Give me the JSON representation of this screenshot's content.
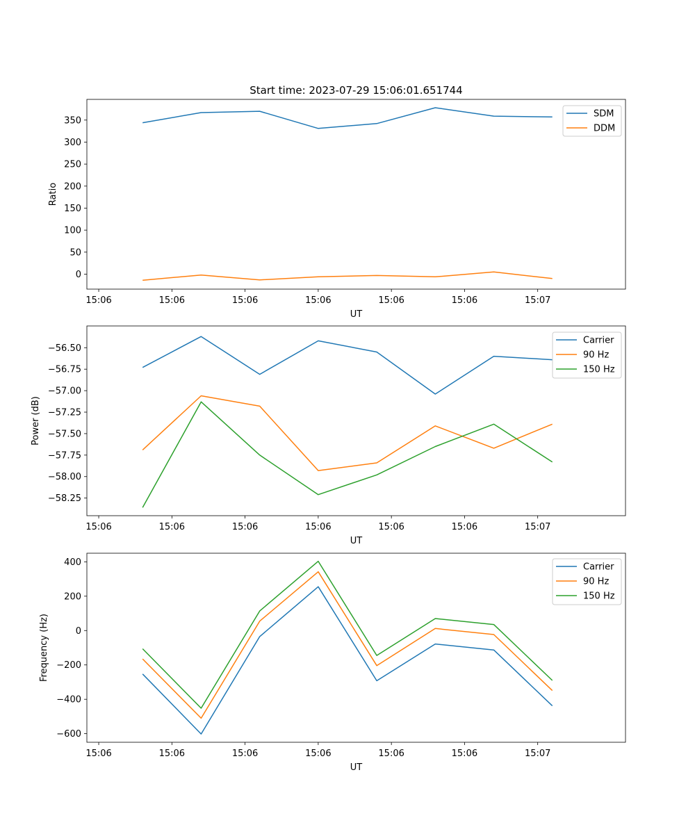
{
  "chart_data": [
    {
      "type": "line",
      "title": "Start time: 2023-07-29 15:06:01.651744",
      "xlabel": "UT",
      "ylabel": "Ratio",
      "xticks": [
        "15:06",
        "15:06",
        "15:06",
        "15:06",
        "15:06",
        "15:06",
        "15:07"
      ],
      "xlim": [
        -0.127,
        1.1
      ],
      "ylim": [
        -34,
        397
      ],
      "yticks": [
        "0",
        "50",
        "100",
        "150",
        "200",
        "250",
        "300",
        "350"
      ],
      "x": [
        0,
        0.1333,
        0.2667,
        0.4,
        0.5333,
        0.6667,
        0.8,
        0.9333
      ],
      "series": [
        {
          "name": "SDM",
          "color": "#1f77b4",
          "values": [
            344,
            367,
            370,
            331,
            342,
            378,
            359,
            357
          ]
        },
        {
          "name": "DDM",
          "color": "#ff7f0e",
          "values": [
            -14,
            -2,
            -13,
            -6,
            -3,
            -6,
            5,
            -10
          ]
        }
      ],
      "legend": "top-right"
    },
    {
      "type": "line",
      "title": "",
      "xlabel": "UT",
      "ylabel": "Power (dB)",
      "xticks": [
        "15:06",
        "15:06",
        "15:06",
        "15:06",
        "15:06",
        "15:06",
        "15:07"
      ],
      "xlim": [
        -0.127,
        1.1
      ],
      "ylim": [
        -58.455,
        -56.247
      ],
      "yticks": [
        "−58.25",
        "−58.00",
        "−57.75",
        "−57.50",
        "−57.25",
        "−57.00",
        "−56.75",
        "−56.50"
      ],
      "x": [
        0,
        0.1333,
        0.2667,
        0.4,
        0.5333,
        0.6667,
        0.8,
        0.9333
      ],
      "series": [
        {
          "name": "Carrier",
          "color": "#1f77b4",
          "values": [
            -56.73,
            -56.37,
            -56.81,
            -56.42,
            -56.55,
            -57.04,
            -56.6,
            -56.64
          ]
        },
        {
          "name": "90 Hz",
          "color": "#ff7f0e",
          "values": [
            -57.69,
            -57.06,
            -57.18,
            -57.93,
            -57.84,
            -57.41,
            -57.67,
            -57.39
          ]
        },
        {
          "name": "150 Hz",
          "color": "#2ca02c",
          "values": [
            -58.36,
            -57.13,
            -57.75,
            -58.21,
            -57.98,
            -57.65,
            -57.39,
            -57.83
          ]
        }
      ],
      "legend": "top-right"
    },
    {
      "type": "line",
      "title": "",
      "xlabel": "UT",
      "ylabel": "Frequency (Hz)",
      "xticks": [
        "15:06",
        "15:06",
        "15:06",
        "15:06",
        "15:06",
        "15:06",
        "15:07"
      ],
      "xlim": [
        -0.127,
        1.1
      ],
      "ylim": [
        -650,
        450
      ],
      "yticks": [
        "−600",
        "−400",
        "−200",
        "0",
        "200",
        "400"
      ],
      "x": [
        0,
        0.1333,
        0.2667,
        0.4,
        0.5333,
        0.6667,
        0.8,
        0.9333
      ],
      "series": [
        {
          "name": "Carrier",
          "color": "#1f77b4",
          "values": [
            -253,
            -602,
            -35,
            255,
            -292,
            -78,
            -113,
            -438
          ]
        },
        {
          "name": "90 Hz",
          "color": "#ff7f0e",
          "values": [
            -165,
            -510,
            55,
            342,
            -204,
            12,
            -23,
            -349
          ]
        },
        {
          "name": "150 Hz",
          "color": "#2ca02c",
          "values": [
            -106,
            -452,
            114,
            403,
            -145,
            70,
            35,
            -290
          ]
        }
      ],
      "legend": "top-right"
    }
  ]
}
